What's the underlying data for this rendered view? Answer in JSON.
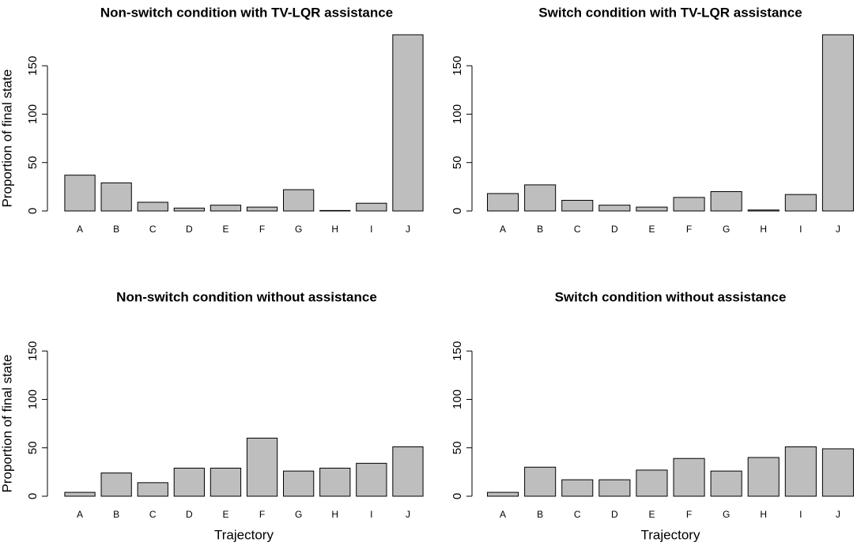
{
  "chart_data": [
    {
      "type": "bar",
      "title": "Non-switch condition with TV-LQR assistance",
      "ylabel": "Proportion of final state",
      "categories": [
        "A",
        "B",
        "C",
        "D",
        "E",
        "F",
        "G",
        "H",
        "I",
        "J"
      ],
      "values": [
        37,
        29,
        9,
        3,
        6,
        4,
        22,
        0.5,
        8,
        182
      ],
      "color": "#bebebe",
      "ylim": [
        0,
        182
      ],
      "yticks": [
        0,
        50,
        100,
        150
      ]
    },
    {
      "type": "bar",
      "title": "Switch condition with TV-LQR assistance",
      "categories": [
        "A",
        "B",
        "C",
        "D",
        "E",
        "F",
        "G",
        "H",
        "I",
        "J"
      ],
      "values": [
        18,
        27,
        11,
        6,
        4,
        14,
        20,
        1,
        17,
        182
      ],
      "color": "#bebebe",
      "ylim": [
        0,
        182
      ],
      "yticks": [
        0,
        50,
        100,
        150
      ]
    },
    {
      "type": "bar",
      "title": "Non-switch condition without assistance",
      "ylabel": "Proportion of final state",
      "xlabel": "Trajectory",
      "categories": [
        "A",
        "B",
        "C",
        "D",
        "E",
        "F",
        "G",
        "H",
        "I",
        "J"
      ],
      "values": [
        4,
        24,
        14,
        29,
        29,
        60,
        26,
        29,
        34,
        51
      ],
      "color": "#bebebe",
      "ylim": [
        0,
        182
      ],
      "yticks": [
        0,
        50,
        100,
        150
      ]
    },
    {
      "type": "bar",
      "title": "Switch condition without assistance",
      "xlabel": "Trajectory",
      "categories": [
        "A",
        "B",
        "C",
        "D",
        "E",
        "F",
        "G",
        "H",
        "I",
        "J"
      ],
      "values": [
        4,
        30,
        17,
        17,
        27,
        39,
        26,
        40,
        51,
        49
      ],
      "color": "#bebebe",
      "ylim": [
        0,
        182
      ],
      "yticks": [
        0,
        50,
        100,
        150
      ]
    }
  ]
}
